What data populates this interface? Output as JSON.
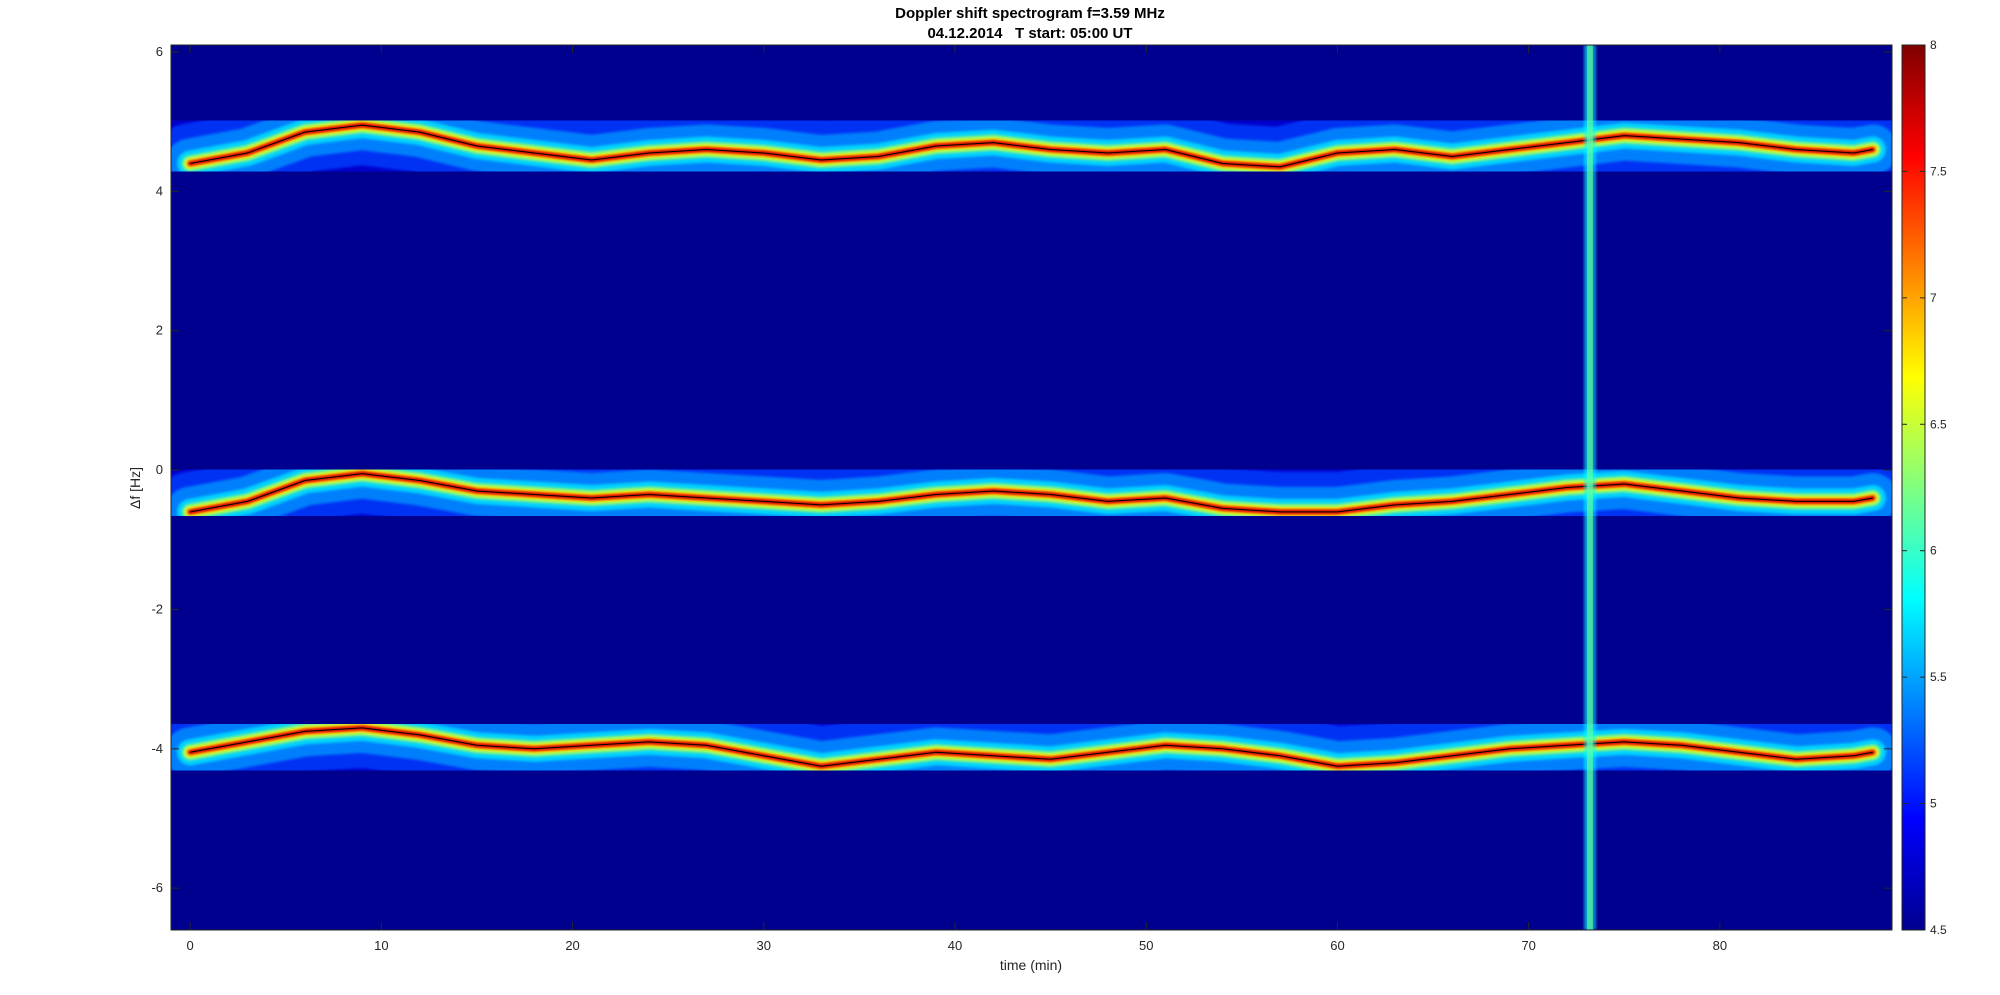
{
  "chart_data": {
    "type": "heatmap",
    "title": "Doppler shift spectrogram f=3.59 MHz",
    "subtitle": "04.12.2014   T start: 05:00 UT",
    "xlabel": "time (min)",
    "ylabel": "Δf [Hz]",
    "xlim": [
      -1,
      89
    ],
    "ylim": [
      -6.6,
      6.1
    ],
    "xticks": [
      0,
      10,
      20,
      30,
      40,
      50,
      60,
      70,
      80
    ],
    "yticks": [
      6,
      4,
      2,
      0,
      -2,
      -4,
      -6
    ],
    "colorbar": {
      "range": [
        4.5,
        8
      ],
      "ticks": [
        8,
        7.5,
        7,
        6.5,
        6,
        5.5,
        5,
        4.5
      ],
      "colormap": "jet"
    },
    "traces": [
      {
        "x": [
          0,
          3,
          6,
          9,
          12,
          15,
          18,
          21,
          24,
          27,
          30,
          33,
          36,
          39,
          42,
          45,
          48,
          51,
          54,
          57,
          60,
          63,
          66,
          69,
          72,
          75,
          78,
          81,
          84,
          87,
          88
        ],
        "y": [
          4.4,
          4.55,
          4.85,
          4.95,
          4.85,
          4.65,
          4.55,
          4.45,
          4.55,
          4.6,
          4.55,
          4.45,
          4.5,
          4.65,
          4.7,
          4.6,
          4.55,
          4.6,
          4.4,
          4.35,
          4.55,
          4.6,
          4.5,
          4.6,
          4.7,
          4.8,
          4.75,
          4.7,
          4.6,
          4.55,
          4.6
        ]
      },
      {
        "x": [
          0,
          3,
          6,
          9,
          12,
          15,
          18,
          21,
          24,
          27,
          30,
          33,
          36,
          39,
          42,
          45,
          48,
          51,
          54,
          57,
          60,
          63,
          66,
          69,
          72,
          75,
          78,
          81,
          84,
          87,
          88
        ],
        "y": [
          -0.6,
          -0.45,
          -0.15,
          -0.05,
          -0.15,
          -0.3,
          -0.35,
          -0.4,
          -0.35,
          -0.4,
          -0.45,
          -0.5,
          -0.45,
          -0.35,
          -0.3,
          -0.35,
          -0.45,
          -0.4,
          -0.55,
          -0.6,
          -0.6,
          -0.5,
          -0.45,
          -0.35,
          -0.25,
          -0.2,
          -0.3,
          -0.4,
          -0.45,
          -0.45,
          -0.4
        ]
      },
      {
        "x": [
          0,
          3,
          6,
          9,
          12,
          15,
          18,
          21,
          24,
          27,
          30,
          33,
          36,
          39,
          42,
          45,
          48,
          51,
          54,
          57,
          60,
          63,
          66,
          69,
          72,
          75,
          78,
          81,
          84,
          87,
          88
        ],
        "y": [
          -4.05,
          -3.9,
          -3.75,
          -3.7,
          -3.8,
          -3.95,
          -4.0,
          -3.95,
          -3.9,
          -3.95,
          -4.1,
          -4.25,
          -4.15,
          -4.05,
          -4.1,
          -4.15,
          -4.05,
          -3.95,
          -4.0,
          -4.1,
          -4.25,
          -4.2,
          -4.1,
          -4.0,
          -3.95,
          -3.9,
          -3.95,
          -4.05,
          -4.15,
          -4.1,
          -4.05
        ]
      }
    ],
    "vertical_stripe_x": 73.2
  }
}
